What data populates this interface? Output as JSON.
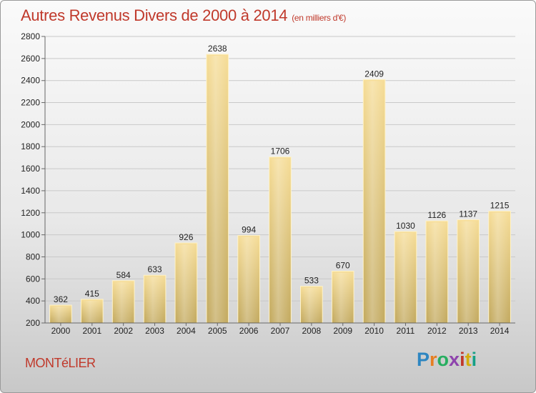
{
  "header": {
    "title": "Autres Revenus Divers de 2000 à 2014",
    "subtitle": "(en milliers d'€)"
  },
  "footer": {
    "place": "MONTéLIER",
    "logo": [
      "P",
      "r",
      "o",
      "x",
      "i",
      "t",
      "i"
    ],
    "logo_colors": [
      "#2e86c1",
      "#e67e22",
      "#27ae60",
      "#8e44ad",
      "#c0392b",
      "#d4ac0d",
      "#16a085"
    ]
  },
  "chart_data": {
    "type": "bar",
    "title": "Autres Revenus Divers de 2000 à 2014",
    "subtitle": "(en milliers d'€)",
    "categories": [
      "2000",
      "2001",
      "2002",
      "2003",
      "2004",
      "2005",
      "2006",
      "2007",
      "2008",
      "2009",
      "2010",
      "2011",
      "2012",
      "2013",
      "2014"
    ],
    "values": [
      362,
      415,
      584,
      633,
      926,
      2638,
      994,
      1706,
      533,
      670,
      2409,
      1030,
      1126,
      1137,
      1215
    ],
    "data_labels": [
      "362",
      "415",
      "584",
      "633",
      "926",
      "2638",
      "994",
      "1706",
      "533",
      "670",
      "2409",
      "1030",
      "1126",
      "1137",
      "1215"
    ],
    "yticks": [
      "200",
      "400",
      "600",
      "800",
      "1000",
      "1200",
      "1400",
      "1600",
      "1800",
      "2000",
      "2200",
      "2400",
      "2600",
      "2800"
    ],
    "ylim": [
      200,
      2800
    ],
    "grid": true,
    "bar_color": "#e8cc82",
    "xlabel": "",
    "ylabel": ""
  }
}
